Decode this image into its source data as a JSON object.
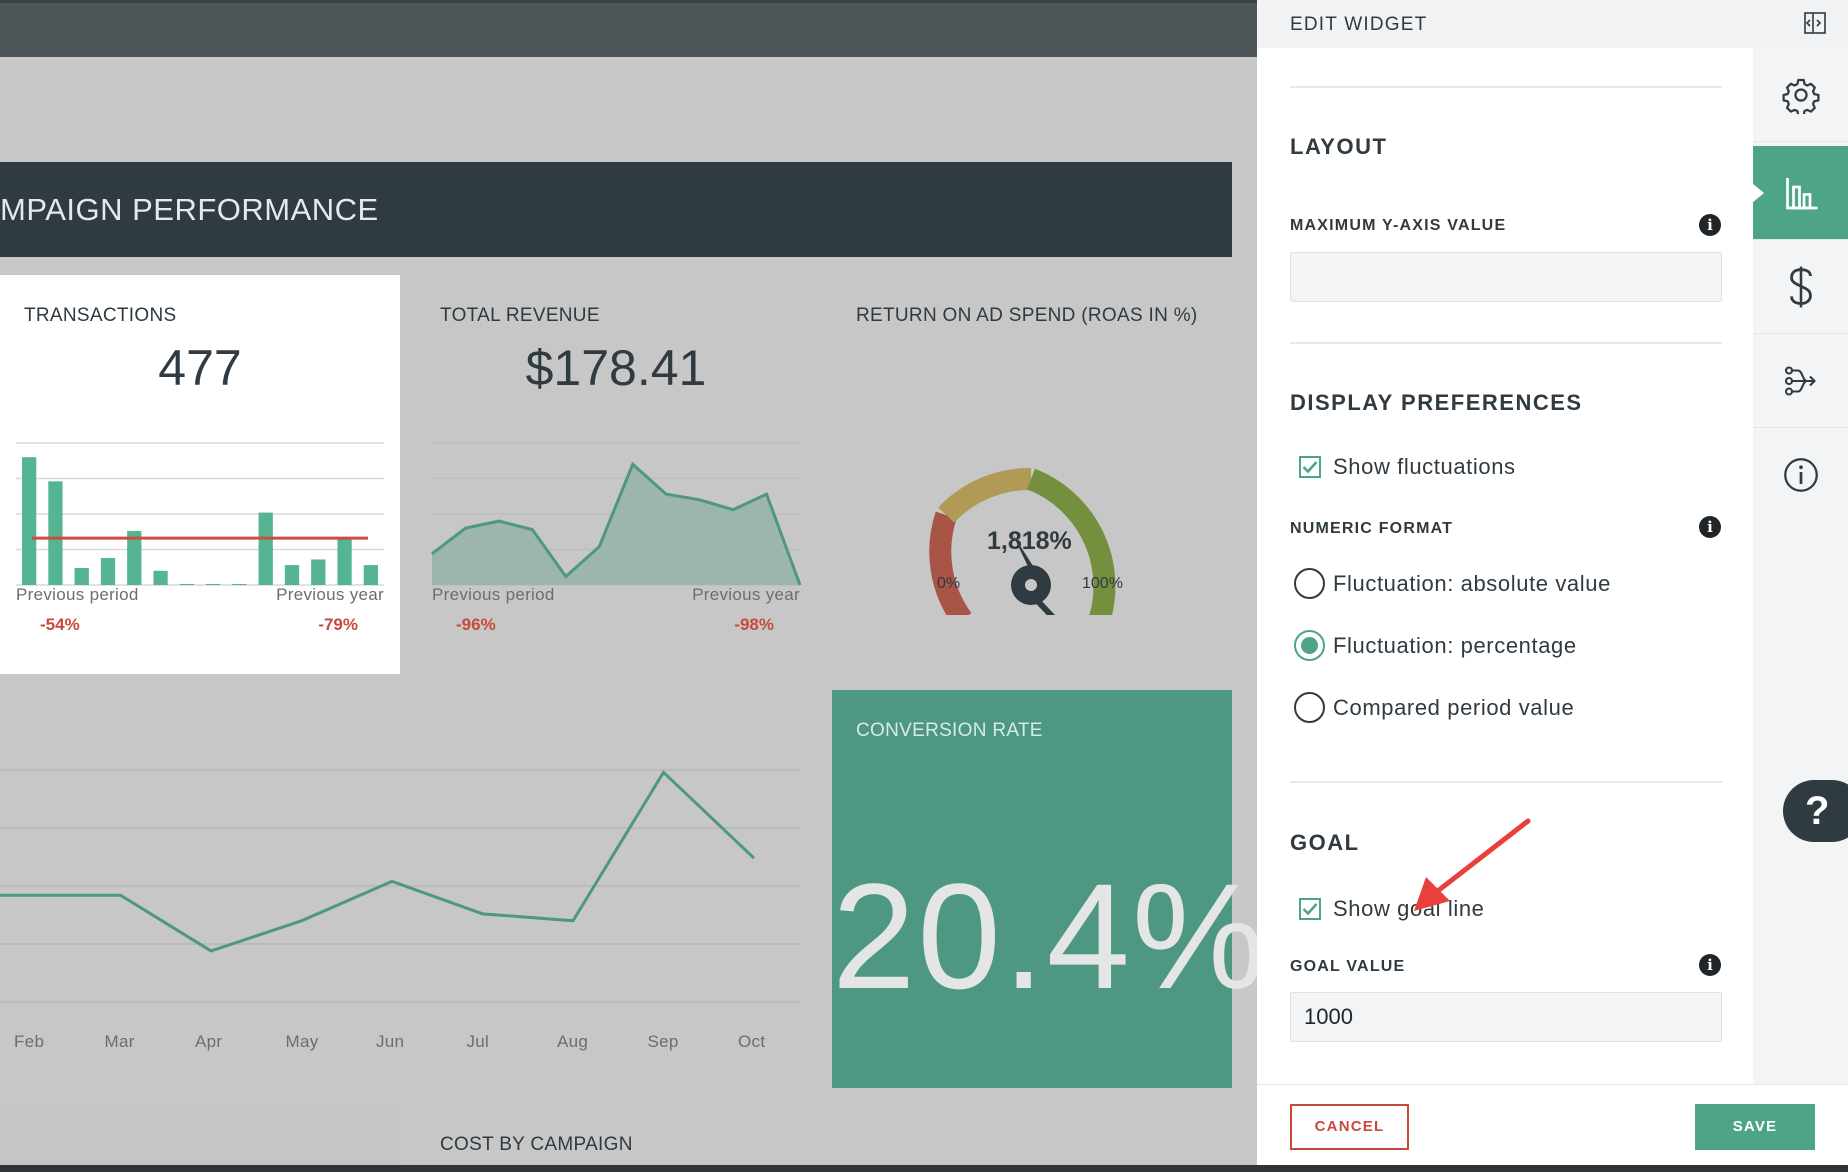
{
  "dashboard": {
    "section_title": "MPAIGN PERFORMANCE",
    "transactions": {
      "title": "TRANSACTIONS",
      "value": "477",
      "prev_period_label": "Previous period",
      "prev_period_value": "-54%",
      "prev_year_label": "Previous year",
      "prev_year_value": "-79%",
      "bars": [
        0.9,
        0.73,
        0.12,
        0.19,
        0.38,
        0.1,
        0.0,
        0.0,
        0.0,
        0.51,
        0.14,
        0.18,
        0.33,
        0.14
      ],
      "goal_level": 0.33
    },
    "revenue": {
      "title": "TOTAL REVENUE",
      "value": "$178.41",
      "prev_period_label": "Previous period",
      "prev_period_value": "-96%",
      "prev_year_label": "Previous year",
      "prev_year_value": "-98%",
      "series": [
        0.22,
        0.4,
        0.45,
        0.39,
        0.06,
        0.27,
        0.85,
        0.64,
        0.6,
        0.53,
        0.64,
        0.0
      ]
    },
    "roas": {
      "title": "RETURN ON AD SPEND (ROAS IN %)",
      "value": "1,818%",
      "min_label": "0%",
      "max_label": "100%"
    },
    "line_chart": {
      "x_labels": [
        "Feb",
        "Mar",
        "Apr",
        "May",
        "Jun",
        "Jul",
        "Aug",
        "Sep",
        "Oct"
      ],
      "values": [
        0.46,
        0.46,
        0.22,
        0.35,
        0.52,
        0.38,
        0.35,
        0.99,
        0.62
      ]
    },
    "conversion": {
      "title": "CONVERSION RATE",
      "value": "20.4%"
    },
    "cost_by_campaign": {
      "title": "COST BY CAMPAIGN"
    },
    "colors": {
      "accent": "#4ea489",
      "negative": "#c84a3c",
      "dark": "#2f3a41"
    }
  },
  "panel": {
    "title": "EDIT WIDGET",
    "layout": {
      "heading": "LAYOUT",
      "max_y_label": "MAXIMUM Y-AXIS VALUE",
      "max_y_value": ""
    },
    "display": {
      "heading": "DISPLAY PREFERENCES",
      "show_fluctuations_label": "Show fluctuations",
      "show_fluctuations_checked": true,
      "numeric_format_label": "NUMERIC FORMAT",
      "options": [
        "Fluctuation: absolute value",
        "Fluctuation: percentage",
        "Compared period value"
      ],
      "selected_option": "Fluctuation: percentage"
    },
    "goal": {
      "heading": "GOAL",
      "show_goal_line_label": "Show goal line",
      "show_goal_line_checked": true,
      "goal_value_label": "GOAL VALUE",
      "goal_value": "1000"
    },
    "cancel_label": "CANCEL",
    "save_label": "SAVE",
    "rail_icons": [
      "gear-icon",
      "bar-chart-icon",
      "dollar-icon",
      "data-flow-icon",
      "info-icon"
    ]
  },
  "help": {
    "label": "?"
  }
}
